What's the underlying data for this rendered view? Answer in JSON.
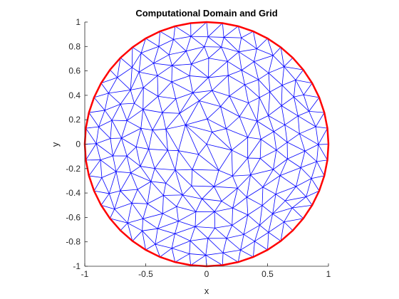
{
  "chart_data": {
    "type": "mesh",
    "title": "Computational Domain and Grid",
    "xlabel": "x",
    "ylabel": "y",
    "xlim": [
      -1,
      1
    ],
    "ylim": [
      -1,
      1
    ],
    "xticks": [
      -1,
      -0.5,
      0,
      0.5,
      1
    ],
    "xtick_labels": [
      "-1",
      "-0.5",
      "0",
      "0.5",
      "1"
    ],
    "yticks": [
      -1,
      -0.8,
      -0.6,
      -0.4,
      -0.2,
      0,
      0.2,
      0.4,
      0.6,
      0.8,
      1
    ],
    "ytick_labels": [
      "-1",
      "-0.8",
      "-0.6",
      "-0.4",
      "-0.2",
      "0",
      "0.2",
      "0.4",
      "0.6",
      "0.8",
      "1"
    ],
    "domain": {
      "shape": "circle",
      "center": [
        0,
        0
      ],
      "radius": 1,
      "boundary_segments": 48
    },
    "mesh": {
      "element": "triangle",
      "interior_rings": [
        2,
        7,
        12,
        18,
        23,
        29,
        34,
        40
      ],
      "ring_radii": [
        0.1,
        0.22,
        0.34,
        0.46,
        0.57,
        0.68,
        0.79,
        0.9
      ]
    },
    "colors": {
      "mesh": "#0000ff",
      "boundary": "#ff0000",
      "axes": "#262626"
    }
  }
}
